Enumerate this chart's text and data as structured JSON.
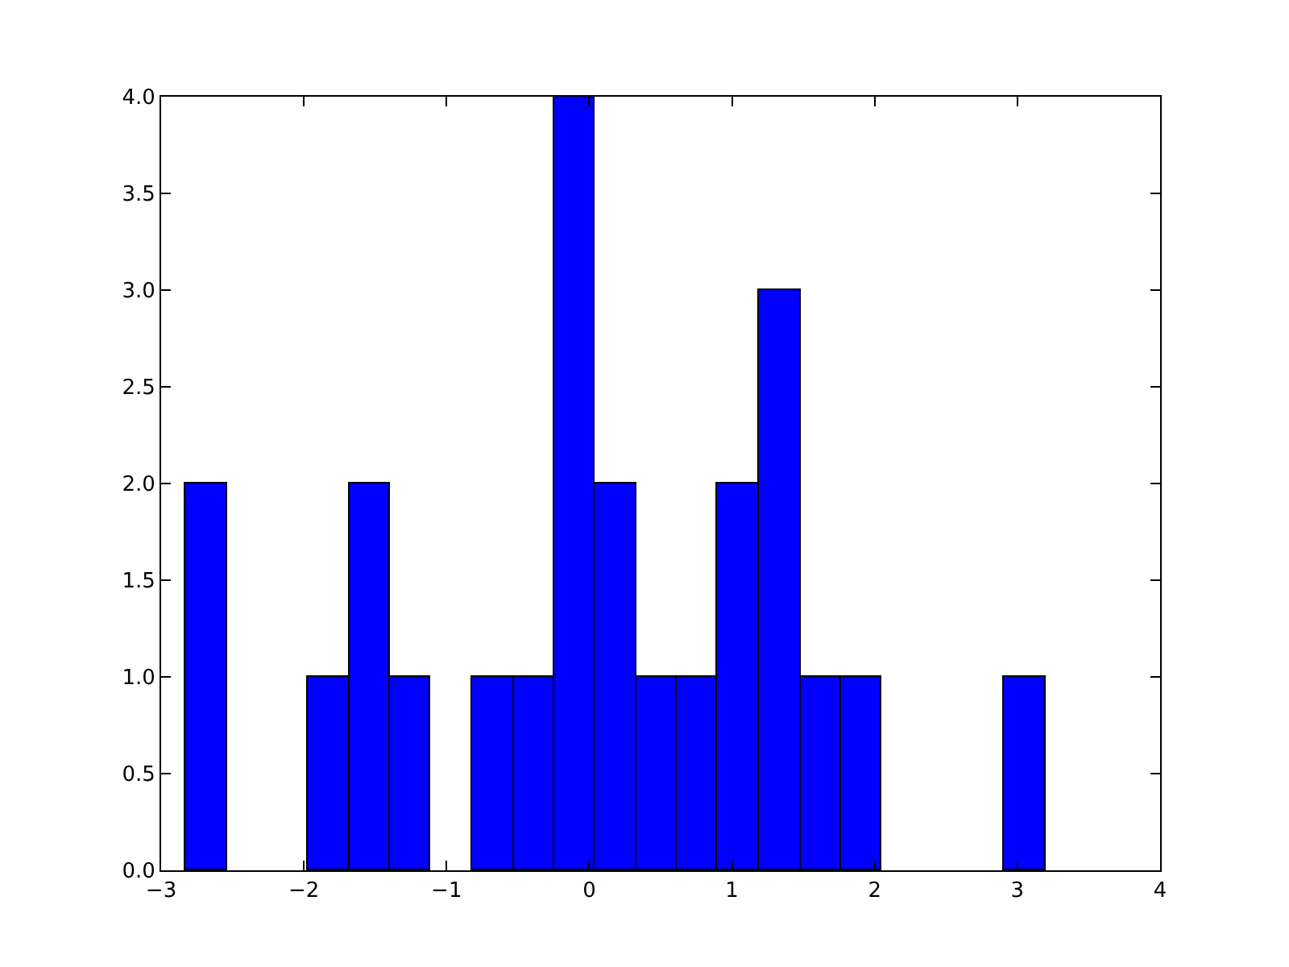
{
  "chart_data": {
    "type": "histogram",
    "bins": [
      -2.83,
      -2.54,
      -1.97,
      -1.68,
      -1.4,
      -1.11,
      -0.82,
      -0.53,
      -0.25,
      0.04,
      0.33,
      0.61,
      0.9,
      1.19,
      1.48,
      1.76,
      2.05,
      2.91,
      3.2
    ],
    "values": [
      2,
      0,
      1,
      2,
      1,
      0,
      1,
      1,
      4,
      2,
      1,
      1,
      2,
      3,
      1,
      1,
      0,
      1
    ],
    "color": "#0000ff",
    "xlim": [
      -3,
      4
    ],
    "xticks": [
      {
        "value": -3,
        "label": "−3"
      },
      {
        "value": -2,
        "label": "−2"
      },
      {
        "value": -1,
        "label": "−1"
      },
      0,
      1,
      2,
      3,
      4
    ],
    "ylim": [
      0,
      4
    ],
    "yticks": [
      {
        "value": 0,
        "label": "0.0"
      },
      {
        "value": 0.5,
        "label": "0.5"
      },
      {
        "value": 1,
        "label": "1.0"
      },
      {
        "value": 1.5,
        "label": "1.5"
      },
      {
        "value": 2,
        "label": "2.0"
      },
      {
        "value": 2.5,
        "label": "2.5"
      },
      {
        "value": 3,
        "label": "3.0"
      },
      {
        "value": 3.5,
        "label": "3.5"
      },
      {
        "value": 4,
        "label": "4.0"
      }
    ],
    "tick_labels": true
  }
}
